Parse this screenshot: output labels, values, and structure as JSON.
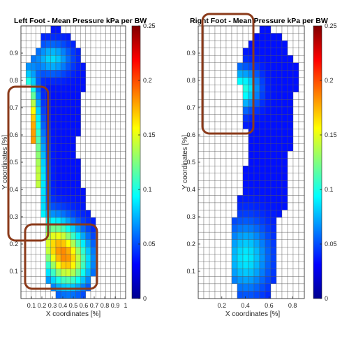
{
  "chart_data": [
    {
      "type": "heatmap",
      "title": "Left Foot  - Mean Pressure kPa per BW",
      "xlabel": "X coordinates [%]",
      "ylabel": "Y coordinates [%]",
      "xlim": [
        0,
        1
      ],
      "ylim": [
        0,
        1
      ],
      "x_ticks": [
        "0.1",
        "0.2",
        "0.3",
        "0.4",
        "0.5",
        "0.6",
        "0.7",
        "0.8",
        "0.9",
        "1"
      ],
      "y_ticks": [
        "0.1",
        "0.2",
        "0.3",
        "0.4",
        "0.5",
        "0.6",
        "0.7",
        "0.8",
        "0.9"
      ],
      "colorbar_ticks": [
        "0",
        "0.05",
        "0.1",
        "0.15",
        "0.2",
        "0.25"
      ],
      "colorbar_range": [
        0,
        0.25
      ],
      "colormap": "jet",
      "highlight_boxes": "forefoot-edge, heel",
      "grid": true
    },
    {
      "type": "heatmap",
      "title": "Right Foot  - Mean Pressure kPa per BW",
      "xlabel": "X coordinates [%]",
      "ylabel": "Y coordinates [%]",
      "xlim": [
        0,
        0.9
      ],
      "ylim": [
        0,
        1
      ],
      "x_ticks": [
        "0.2",
        "0.4",
        "0.6",
        "0.8"
      ],
      "y_ticks": [
        "0.1",
        "0.2",
        "0.3",
        "0.4",
        "0.5",
        "0.6",
        "0.7",
        "0.8",
        "0.9"
      ],
      "colorbar_ticks": [
        "0",
        "0.05",
        "0.1",
        "0.15",
        "0.2",
        "0.25"
      ],
      "colorbar_range": [
        0,
        0.25
      ],
      "colormap": "jet",
      "highlight_boxes": "toes",
      "grid": true
    }
  ],
  "colors": {
    "highlight": "#8B3A1A",
    "axis": "#262626",
    "grid": "#555555"
  }
}
